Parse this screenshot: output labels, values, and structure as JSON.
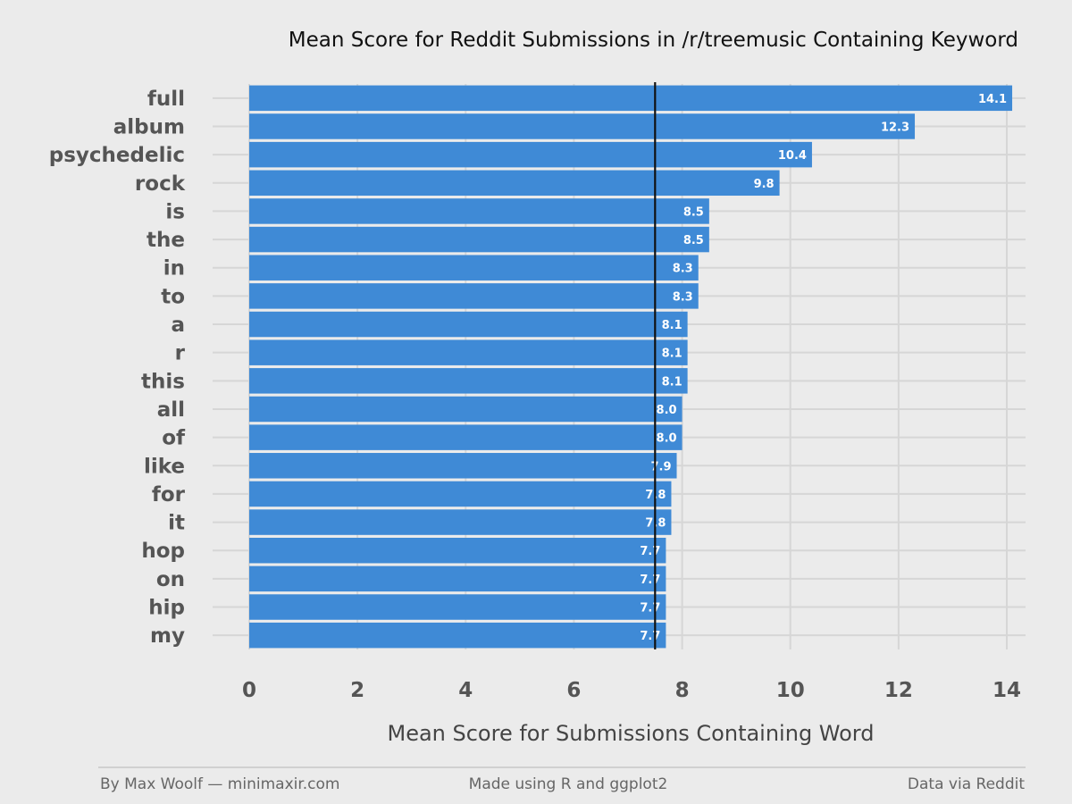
{
  "chart_data": {
    "type": "bar",
    "orientation": "horizontal",
    "title": "Mean Score for Reddit Submissions in /r/treemusic Containing Keyword",
    "xlabel": "Mean Score for Submissions Containing Word",
    "ylabel": "",
    "categories": [
      "full",
      "album",
      "psychedelic",
      "rock",
      "is",
      "the",
      "in",
      "to",
      "a",
      "r",
      "this",
      "all",
      "of",
      "like",
      "for",
      "it",
      "hop",
      "on",
      "hip",
      "my"
    ],
    "values": [
      14.1,
      12.3,
      10.4,
      9.8,
      8.5,
      8.5,
      8.3,
      8.3,
      8.1,
      8.1,
      8.1,
      8.0,
      8.0,
      7.9,
      7.8,
      7.8,
      7.7,
      7.7,
      7.7,
      7.7
    ],
    "value_labels": [
      "14.1",
      "12.3",
      "10.4",
      "9.8",
      "8.5",
      "8.5",
      "8.3",
      "8.3",
      "8.1",
      "8.1",
      "8.1",
      "8.0",
      "8.0",
      "7.9",
      "7.8",
      "7.8",
      "7.7",
      "7.7",
      "7.7",
      "7.7"
    ],
    "xlim": [
      0,
      14.5
    ],
    "xticks": [
      0,
      2,
      4,
      6,
      8,
      10,
      12,
      14
    ],
    "xtick_labels": [
      "0",
      "2",
      "4",
      "6",
      "8",
      "10",
      "12",
      "14"
    ],
    "reference_line": 7.5,
    "grid": true,
    "legend": "none",
    "colors": {
      "bar": "#3f8ad6",
      "background": "#ebebeb",
      "grid": "#d6d6d6",
      "reference_line": "#111111"
    }
  },
  "footer": {
    "left": "By Max Woolf — minimaxir.com",
    "center": "Made using R and ggplot2",
    "right": "Data via Reddit"
  }
}
